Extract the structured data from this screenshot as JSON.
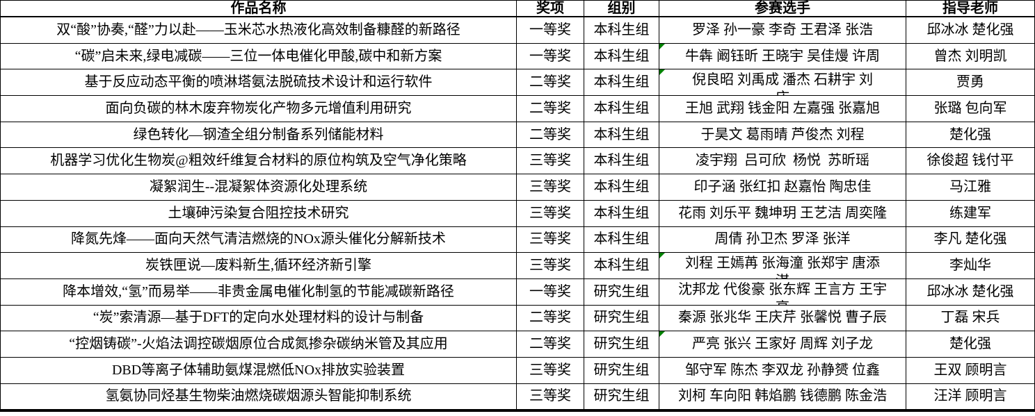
{
  "table": {
    "columns": [
      "作品名称",
      "奖项",
      "组别",
      "参赛选手",
      "指导老师"
    ],
    "rows": [
      {
        "title": "双“酸”协奏,“醛”力以赴——玉米芯水热液化高效制备糠醛的新路径",
        "award": "一等奖",
        "group": "本科生组",
        "contestants": [
          "罗泽 孙一豪 李奇 王君泽 张浩"
        ],
        "teachers": "邱冰冰 楚化强",
        "marker": false
      },
      {
        "title": "“碳”启未来,绿电减碳——三位一体电催化甲酸,碳中和新方案",
        "award": "一等奖",
        "group": "本科生组",
        "contestants": [
          "牛犇 阚钰昕 王晓宇 吴佳熳 许周"
        ],
        "teachers": "曾杰 刘明凯",
        "marker": true
      },
      {
        "title": "基于反应动态平衡的喷淋塔氨法脱硫技术设计和运行软件",
        "award": "二等奖",
        "group": "本科生组",
        "contestants": [
          "倪良昭 刘禹成 潘杰 石耕宇 刘",
          "庆"
        ],
        "teachers": "贾勇",
        "marker": true
      },
      {
        "title": "面向负碳的林木废弃物炭化产物多元增值利用研究",
        "award": "二等奖",
        "group": "本科生组",
        "contestants": [
          "王旭 武翔 钱金阳 左嘉强 张嘉旭"
        ],
        "teachers": "张璐 包向军",
        "marker": false
      },
      {
        "title": "绿色转化—钢渣全组分制备系列储能材料",
        "award": "二等奖",
        "group": "本科生组",
        "contestants": [
          "于昊文 葛雨晴 芦俊杰 刘程"
        ],
        "teachers": "楚化强",
        "marker": false
      },
      {
        "title": "机器学习优化生物炭@粗效纤维复合材料的原位构筑及空气净化策略",
        "award": "三等奖",
        "group": "本科生组",
        "contestants": [
          "凌宇翔  吕可欣  杨悦  苏昕瑶"
        ],
        "teachers": "徐俊超 钱付平",
        "marker": false
      },
      {
        "title": "凝絮润生--混凝絮体资源化处理系统",
        "award": "三等奖",
        "group": "本科生组",
        "contestants": [
          "印子涵 张红扣 赵嘉怡 陶忠佳"
        ],
        "teachers": "马江雅",
        "marker": false
      },
      {
        "title": "土壤砷污染复合阻控技术研究",
        "award": "三等奖",
        "group": "本科生组",
        "contestants": [
          "花雨 刘乐平 魏坤玥 王艺洁 周奕隆"
        ],
        "teachers": "练建军",
        "marker": false
      },
      {
        "title": "降氮先烽——面向天然气清洁燃烧的NOx源头催化分解新技术",
        "award": "三等奖",
        "group": "本科生组",
        "contestants": [
          "周倩 孙卫杰 罗泽 张洋"
        ],
        "teachers": "李凡 楚化强",
        "marker": false
      },
      {
        "title": "炭铁匣说—废料新生,循环经济新引擎",
        "award": "三等奖",
        "group": "本科生组",
        "contestants": [
          "刘程 王嫣苒 张海潼 张郑宇 唐添",
          "淇"
        ],
        "teachers": "李灿华",
        "marker": true
      },
      {
        "title": "降本增效,“氢”而易举——非贵金属电催化制氢的节能减碳新路径",
        "award": "一等奖",
        "group": "研究生组",
        "contestants": [
          "沈邦龙 代俊豪 张东辉 王言方 王宇",
          "亮"
        ],
        "teachers": "邱冰冰 楚化强",
        "marker": false
      },
      {
        "title": "“炭”索清源—基于DFT的定向水处理材料的设计与制备",
        "award": "二等奖",
        "group": "研究生组",
        "contestants": [
          "秦源 张兆华 王庆芹 张馨悦 曹子辰"
        ],
        "teachers": "丁磊 宋兵",
        "marker": false
      },
      {
        "title": "“控烟铸碳”-火焰法调控碳烟原位合成氮掺杂碳纳米管及其应用",
        "award": "二等奖",
        "group": "研究生组",
        "contestants": [
          "严亮 张兴 王家好 周辉 刘子龙"
        ],
        "teachers": "楚化强",
        "marker": true
      },
      {
        "title": "DBD等离子体辅助氨煤混燃低NOx排放实验装置",
        "award": "三等奖",
        "group": "研究生组",
        "contestants": [
          "邹守军 陈杰 李双龙 孙静赟 位鑫"
        ],
        "teachers": "王双 顾明言",
        "marker": false
      },
      {
        "title": "氢氨协同烃基生物柴油燃烧碳烟源头智能抑制系统",
        "award": "三等奖",
        "group": "研究生组",
        "contestants": [
          "刘柯 车向阳 韩焰鹏 钱德鹏 陈金浩"
        ],
        "teachers": "汪洋 顾明言",
        "marker": false
      }
    ]
  },
  "colors": {
    "border": "#000000",
    "text": "#000000",
    "background": "#ffffff",
    "error_marker_green": "#008000"
  }
}
